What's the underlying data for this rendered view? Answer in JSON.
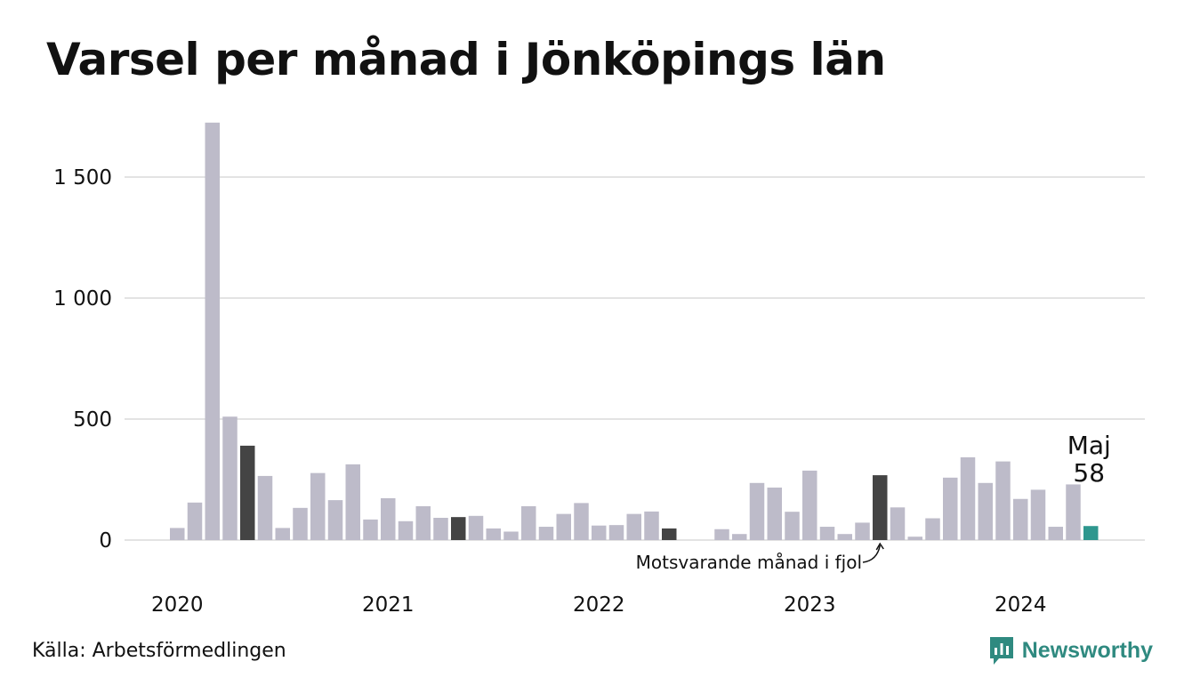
{
  "title": "Varsel per månad i Jönköpings län",
  "source": "Källa: Arbetsförmedlingen",
  "brand": "Newsworthy",
  "chart_data": {
    "type": "bar",
    "title": "Varsel per månad i Jönköpings län",
    "xlabel": "",
    "ylabel": "",
    "ylim": [
      0,
      1750
    ],
    "yticks": [
      {
        "value": 0,
        "label": "0"
      },
      {
        "value": 500,
        "label": "500"
      },
      {
        "value": 1000,
        "label": "1 000"
      },
      {
        "value": 1500,
        "label": "1 500"
      }
    ],
    "year_labels": [
      "2020",
      "2021",
      "2022",
      "2023",
      "2024"
    ],
    "start": "2020-01",
    "values": [
      50,
      155,
      1725,
      510,
      390,
      265,
      50,
      133,
      277,
      165,
      313,
      85,
      173,
      78,
      140,
      92,
      95,
      100,
      48,
      35,
      140,
      55,
      108,
      153,
      60,
      62,
      108,
      118,
      48,
      0,
      0,
      45,
      25,
      236,
      217,
      117,
      287,
      55,
      25,
      72,
      268,
      135,
      14,
      90,
      258,
      342,
      236,
      325,
      170,
      208,
      55,
      230,
      58
    ],
    "highlight_previous_year_index": [
      4,
      16,
      28,
      40
    ],
    "current_index": 52,
    "colors": {
      "bar": "#bdbbc9",
      "previous_year": "#444444",
      "current": "#2e978e",
      "grid": "#e3e3e3"
    },
    "annotation": "Motsvarande månad i fjol",
    "callout": {
      "month": "Maj",
      "value": "58"
    }
  }
}
